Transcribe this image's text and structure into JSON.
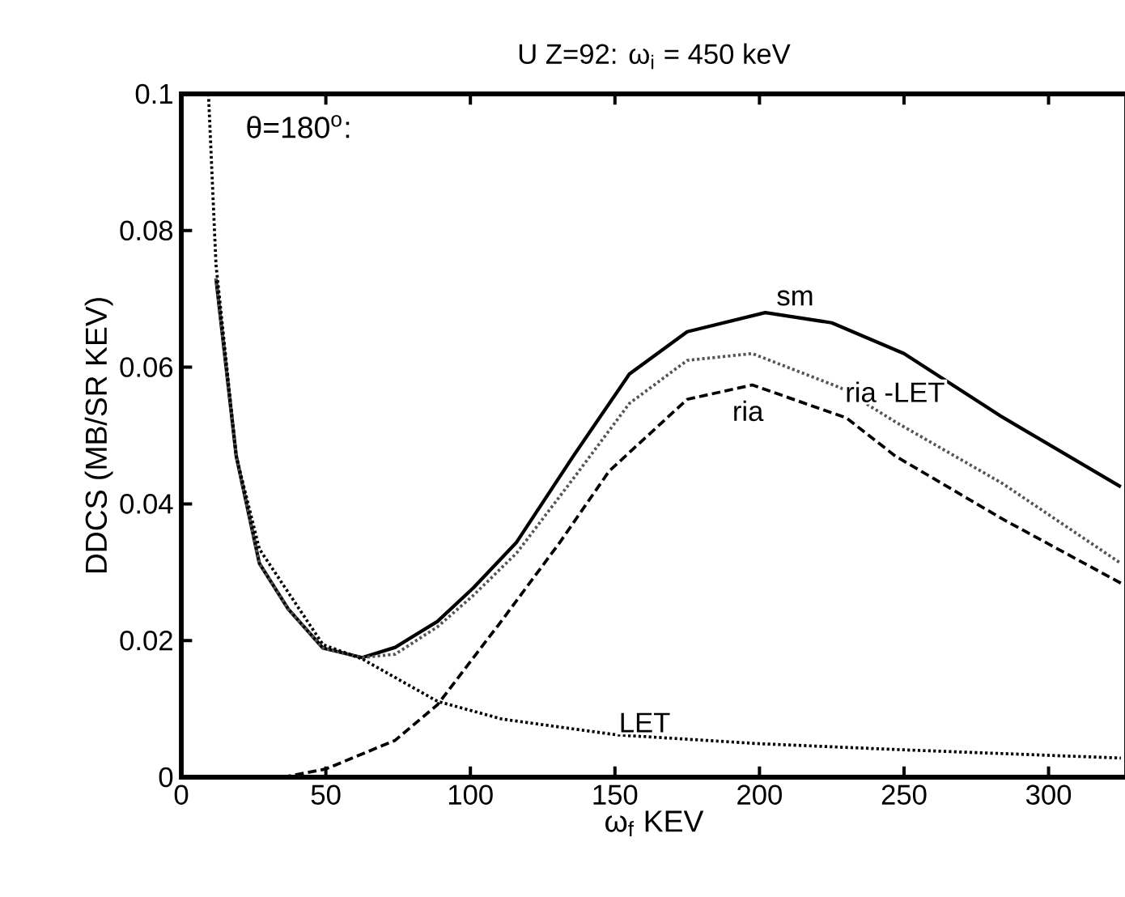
{
  "chart_data": {
    "type": "line",
    "title": "U  Z=92:  ω$_{i}$ = 450 keV",
    "xlabel": "ω$_{f}$ KEV",
    "ylabel": "DDCS (MB/SR KEV)",
    "xlim": [
      0,
      327
    ],
    "ylim": [
      0,
      0.1
    ],
    "xticks": [
      0,
      50,
      100,
      150,
      200,
      250,
      300
    ],
    "yticks": [
      0,
      0.02,
      0.04,
      0.06,
      0.08,
      0.1
    ],
    "grid": false,
    "marker": "none",
    "series": [
      {
        "name": "sm",
        "color": "#000000",
        "line_style": "solid",
        "x": [
          12,
          19,
          27,
          37,
          49,
          62.6,
          74,
          88.6,
          101,
          116,
          135.6,
          155,
          175,
          202,
          225,
          250,
          284,
          325
        ],
        "values": [
          0.073,
          0.047,
          0.0313,
          0.0246,
          0.0189,
          0.0175,
          0.019,
          0.0228,
          0.0277,
          0.0344,
          0.047,
          0.059,
          0.0652,
          0.068,
          0.0665,
          0.062,
          0.0527,
          0.0425
        ]
      },
      {
        "name": "ria -LET",
        "color": "#555555",
        "line_style": "dotted",
        "x": [
          12,
          19,
          27,
          37,
          49,
          62.6,
          74,
          88.6,
          101,
          116,
          135.6,
          155,
          175,
          197.5,
          228,
          247,
          284,
          325
        ],
        "values": [
          0.073,
          0.047,
          0.0313,
          0.0246,
          0.0189,
          0.0175,
          0.018,
          0.022,
          0.0266,
          0.0328,
          0.0437,
          0.0547,
          0.061,
          0.062,
          0.057,
          0.052,
          0.043,
          0.0313
        ]
      },
      {
        "name": "ria",
        "color": "#000000",
        "line_style": "dashed",
        "x": [
          35,
          50,
          74,
          88.6,
          111,
          131,
          148,
          175,
          197.5,
          230,
          247,
          284,
          325
        ],
        "values": [
          0,
          0.0012,
          0.0054,
          0.0106,
          0.023,
          0.0344,
          0.0448,
          0.0553,
          0.0574,
          0.0526,
          0.047,
          0.0378,
          0.0284
        ]
      },
      {
        "name": "LET",
        "color": "#000000",
        "line_style": "dotted",
        "x": [
          9.4,
          12,
          19,
          27,
          49,
          62.6,
          88.6,
          111,
          150.5,
          200,
          250,
          325
        ],
        "values": [
          0.1,
          0.075,
          0.047,
          0.0334,
          0.0194,
          0.0173,
          0.0111,
          0.0085,
          0.0062,
          0.0049,
          0.004,
          0.0028
        ]
      }
    ],
    "annotations": [
      "θ=180$^{o}$:"
    ]
  }
}
